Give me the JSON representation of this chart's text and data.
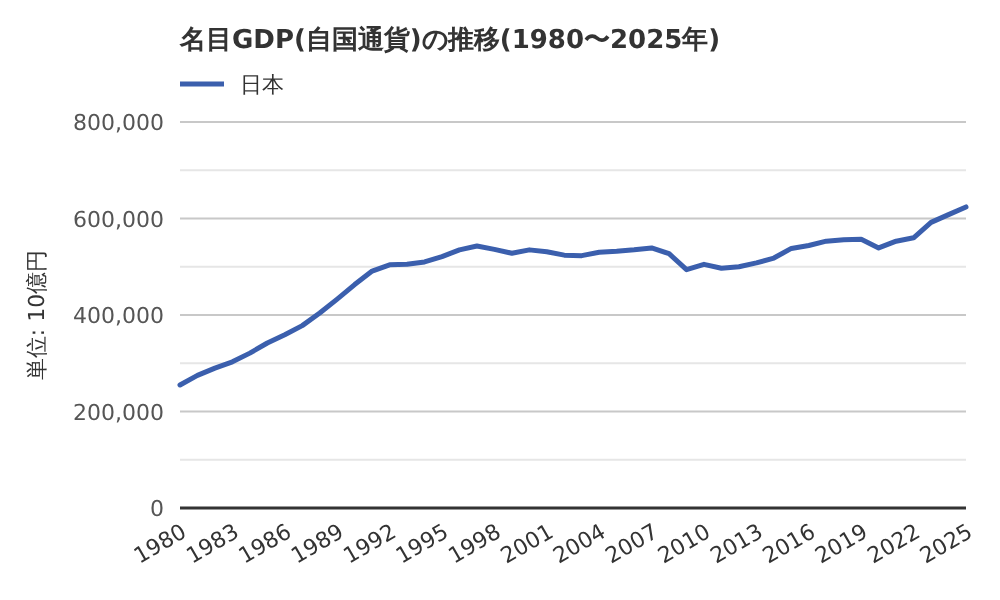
{
  "chart_data": {
    "type": "line",
    "title": "名目GDP(自国通貨)の推移(1980〜2025年)",
    "ylabel": "単位: 10億円",
    "x": [
      1980,
      1981,
      1982,
      1983,
      1984,
      1985,
      1986,
      1987,
      1988,
      1989,
      1990,
      1991,
      1992,
      1993,
      1994,
      1995,
      1996,
      1997,
      1998,
      1999,
      2000,
      2001,
      2002,
      2003,
      2004,
      2005,
      2006,
      2007,
      2008,
      2009,
      2010,
      2011,
      2012,
      2013,
      2014,
      2015,
      2016,
      2017,
      2018,
      2019,
      2020,
      2021,
      2022,
      2023,
      2024,
      2025
    ],
    "series": [
      {
        "name": "日本",
        "color": "#3b5fad",
        "values": [
          255000,
          275000,
          290000,
          303000,
          321000,
          342000,
          359000,
          378000,
          404000,
          433000,
          463000,
          491000,
          504000,
          505000,
          510000,
          521000,
          535000,
          543000,
          536000,
          528000,
          535000,
          531000,
          524000,
          523000,
          530000,
          532000,
          535000,
          539000,
          527000,
          494000,
          505000,
          497000,
          500000,
          508000,
          518000,
          538000,
          544000,
          553000,
          556000,
          557000,
          539000,
          553000,
          560000,
          592000,
          608000,
          624000
        ]
      }
    ],
    "xlim": [
      1980,
      2025
    ],
    "xticks": [
      1980,
      1983,
      1986,
      1989,
      1992,
      1995,
      1998,
      2001,
      2004,
      2007,
      2010,
      2013,
      2016,
      2019,
      2022,
      2025
    ],
    "ylim": [
      0,
      800000
    ],
    "yticks": [
      {
        "value": 0,
        "label": "0"
      },
      {
        "value": 100000,
        "label": null
      },
      {
        "value": 200000,
        "label": "200,000"
      },
      {
        "value": 300000,
        "label": null
      },
      {
        "value": 400000,
        "label": "400,000"
      },
      {
        "value": 500000,
        "label": null
      },
      {
        "value": 600000,
        "label": "600,000"
      },
      {
        "value": 700000,
        "label": null
      },
      {
        "value": 800000,
        "label": "800,000"
      }
    ],
    "grid": "y",
    "legend": "top left",
    "marker": "none",
    "line_style": "solid"
  }
}
